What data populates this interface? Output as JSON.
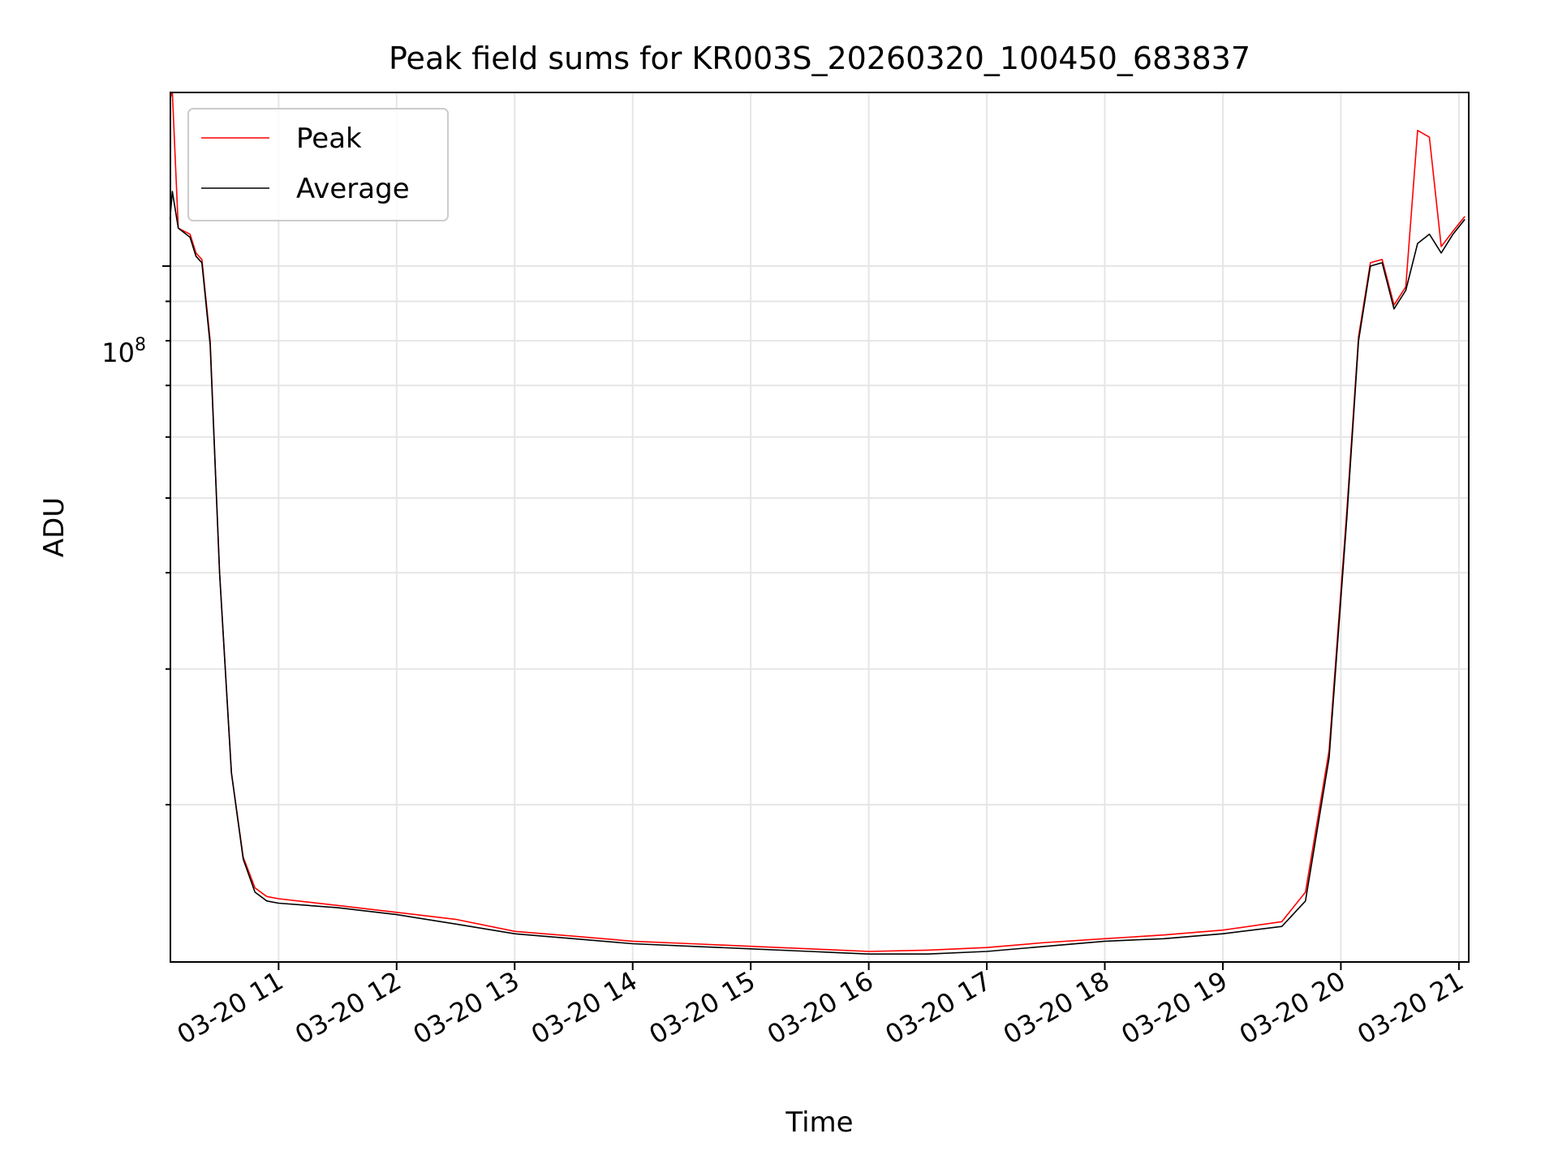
{
  "chart_data": {
    "type": "line",
    "title": "Peak field sums for KR003S_20260320_100450_683837",
    "xlabel": "Time",
    "ylabel": "ADU",
    "yscale": "log",
    "ylim": [
      12500000,
      168000000
    ],
    "xlim": [
      "2026-03-20 10:05",
      "2026-03-20 21:05"
    ],
    "x_tick_labels": [
      "03-20 11",
      "03-20 12",
      "03-20 13",
      "03-20 14",
      "03-20 15",
      "03-20 16",
      "03-20 17",
      "03-20 18",
      "03-20 19",
      "03-20 20",
      "03-20 21"
    ],
    "y_tick_label": {
      "base": "10",
      "exponent": "8"
    },
    "grid": true,
    "legend": {
      "location": "upper-left",
      "entries": [
        "Peak",
        "Average"
      ]
    },
    "colors": {
      "Peak": "#ff0000",
      "Average": "#000000"
    },
    "hours_since_10": [
      0.08,
      0.1,
      0.15,
      0.25,
      0.3,
      0.35,
      0.42,
      0.5,
      0.6,
      0.7,
      0.8,
      0.9,
      1.0,
      1.5,
      2.0,
      2.5,
      3.0,
      3.5,
      4.0,
      4.5,
      5.0,
      5.5,
      6.0,
      6.5,
      7.0,
      7.5,
      8.0,
      8.5,
      9.0,
      9.5,
      9.7,
      9.9,
      10.05,
      10.15,
      10.25,
      10.35,
      10.45,
      10.55,
      10.65,
      10.75,
      10.85,
      10.95,
      11.05
    ],
    "series": [
      {
        "name": "Average",
        "values": [
          115000000,
          125000000,
          112000000,
          109000000,
          103000000,
          101000000,
          79000000,
          40000000,
          22000000,
          17000000,
          15400000,
          15000000,
          14900000,
          14700000,
          14400000,
          14000000,
          13600000,
          13400000,
          13200000,
          13100000,
          13000000,
          12900000,
          12800000,
          12800000,
          12900000,
          13100000,
          13300000,
          13400000,
          13600000,
          13900000,
          15000000,
          23000000,
          47000000,
          80000000,
          100000000,
          101000000,
          88000000,
          93000000,
          107000000,
          110000000,
          104000000,
          110000000,
          115000000
        ]
      },
      {
        "name": "Peak",
        "values": [
          165000000,
          168000000,
          112000000,
          110000000,
          104000000,
          102000000,
          80000000,
          40000000,
          22000000,
          17100000,
          15600000,
          15200000,
          15100000,
          14800000,
          14500000,
          14200000,
          13700000,
          13500000,
          13300000,
          13200000,
          13100000,
          13000000,
          12900000,
          12950000,
          13050000,
          13250000,
          13400000,
          13550000,
          13750000,
          14100000,
          15400000,
          23500000,
          48000000,
          81000000,
          101000000,
          102000000,
          89000000,
          94000000,
          150000000,
          147000000,
          106000000,
          111000000,
          116000000
        ]
      }
    ]
  }
}
